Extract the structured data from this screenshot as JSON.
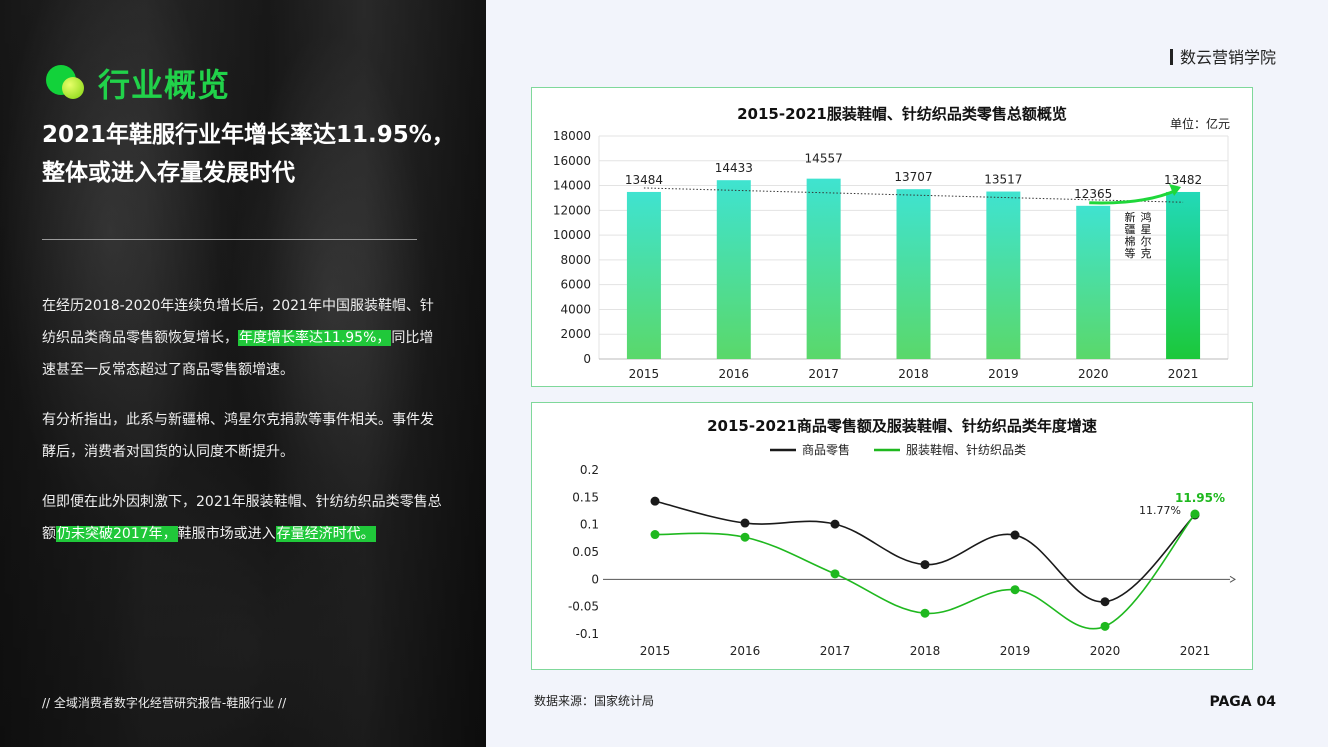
{
  "brand": "数云营销学院",
  "section_title": "行业概览",
  "headline": "2021年鞋服行业年增长率达11.95%，整体或进入存量发展时代",
  "paragraphs": {
    "p1_a": "在经历2018-2020年连续负增长后，2021年中国服装鞋帽、针纺织品类商品零售额恢复增长，",
    "p1_hl": "年度增长率达11.95%，",
    "p1_b": "同比增速甚至一反常态超过了商品零售额增速。",
    "p2": "有分析指出，此系与新疆棉、鸿星尔克捐款等事件相关。事件发酵后，消费者对国货的认同度不断提升。",
    "p3_a": "但即便在此外因刺激下，2021年服装鞋帽、针纺纺织品类零售总额",
    "p3_hl1": "仍未突破2017年，",
    "p3_b": "鞋服市场或进入",
    "p3_hl2": "存量经济时代。"
  },
  "footer_left": "// 全域消费者数字化经营研究报告-鞋服行业 //",
  "source": "数据来源：国家统计局",
  "page_number": "PAGA 04",
  "colors": {
    "accent": "#20c83a",
    "dark": "#1a1a1a",
    "panel_border": "#7fd89a"
  },
  "chart_data": [
    {
      "type": "bar",
      "title": "2015-2021服装鞋帽、针纺织品类零售总额概览",
      "unit_label": "单位：亿元",
      "categories": [
        "2015",
        "2016",
        "2017",
        "2018",
        "2019",
        "2020",
        "2021"
      ],
      "values": [
        13484,
        14433,
        14557,
        13707,
        13517,
        12365,
        13482
      ],
      "value_labels": [
        13484,
        14433,
        14557,
        13707,
        13517,
        12365,
        13482
      ],
      "ylim": [
        0,
        18000
      ],
      "yticks": [
        0,
        2000,
        4000,
        6000,
        8000,
        10000,
        12000,
        14000,
        16000,
        18000
      ],
      "trendline": "dotted",
      "annotation": "新疆棉等 鸿星尔克",
      "annotation_lines": [
        "鸿星尔克",
        "新疆棉等"
      ],
      "grid": true
    },
    {
      "type": "line",
      "title": "2015-2021商品零售额及服装鞋帽、针纺织品类年度增速",
      "categories": [
        "2015",
        "2016",
        "2017",
        "2018",
        "2019",
        "2020",
        "2021"
      ],
      "series": [
        {
          "name": "商品零售",
          "color": "#1a1a1a",
          "values": [
            0.143,
            0.103,
            0.101,
            0.027,
            0.081,
            -0.041,
            0.1177
          ],
          "end_label": "11.77%"
        },
        {
          "name": "服装鞋帽、针纺织品类",
          "color": "#1fb81f",
          "values": [
            0.082,
            0.077,
            0.01,
            -0.062,
            -0.019,
            -0.086,
            0.1195
          ],
          "end_label": "11.95%"
        }
      ],
      "ylim": [
        -0.1,
        0.2
      ],
      "yticks": [
        "-0.1",
        "-0.05",
        "0",
        "0.05",
        "0.1",
        "0.15",
        "0.2"
      ],
      "legend": "top-center",
      "grid": false
    }
  ]
}
